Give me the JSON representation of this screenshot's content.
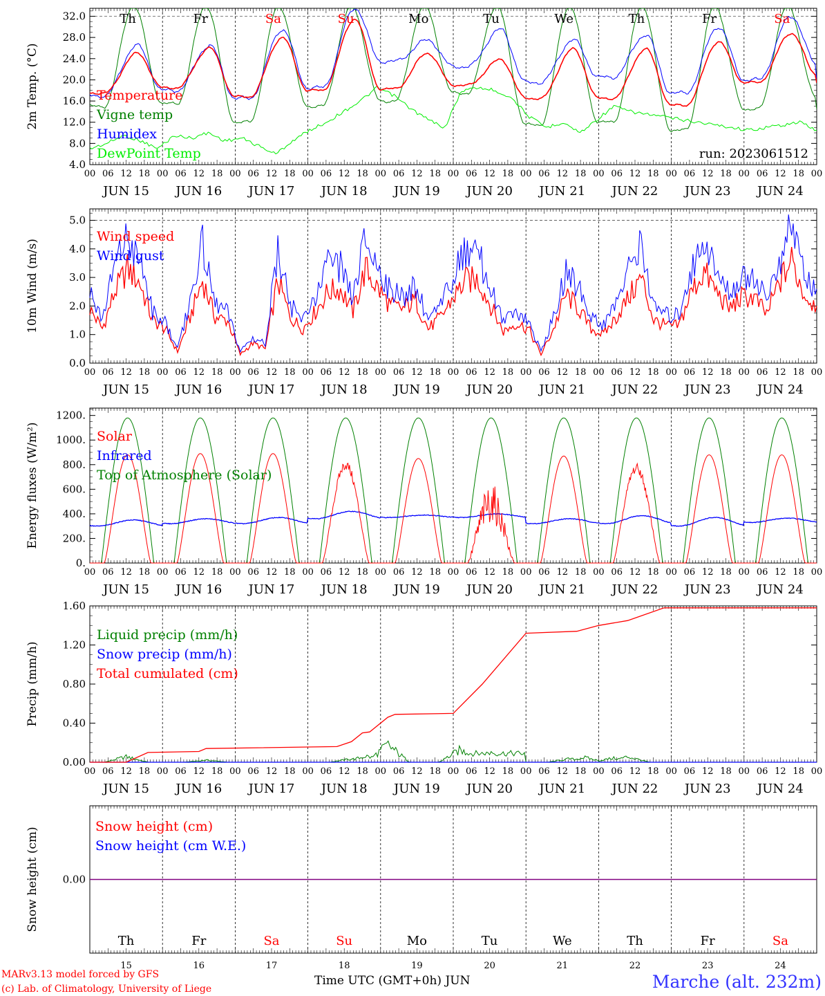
{
  "colors": {
    "temperature": "#ff0000",
    "vigne": "#008000",
    "humidex": "#0000ff",
    "dewpoint": "#00ee00",
    "weekend": "#ff0000",
    "weekday": "#000000",
    "snow_line": "#800080",
    "station": "#3333ff",
    "credit": "#ff0000"
  },
  "days": [
    {
      "abbr": "Th",
      "date": "JUN 15",
      "num": "15",
      "weekend": false
    },
    {
      "abbr": "Fr",
      "date": "JUN 16",
      "num": "16",
      "weekend": false
    },
    {
      "abbr": "Sa",
      "date": "JUN 17",
      "num": "17",
      "weekend": true
    },
    {
      "abbr": "Su",
      "date": "JUN 18",
      "num": "18",
      "weekend": true
    },
    {
      "abbr": "Mo",
      "date": "JUN 19",
      "num": "19",
      "weekend": false
    },
    {
      "abbr": "Tu",
      "date": "JUN 20",
      "num": "20",
      "weekend": false
    },
    {
      "abbr": "We",
      "date": "JUN 21",
      "num": "21",
      "weekend": false
    },
    {
      "abbr": "Th",
      "date": "JUN 22",
      "num": "22",
      "weekend": false
    },
    {
      "abbr": "Fr",
      "date": "JUN 23",
      "num": "23",
      "weekend": false
    },
    {
      "abbr": "Sa",
      "date": "JUN 24",
      "num": "24",
      "weekend": true
    }
  ],
  "hour_ticks": [
    "00",
    "06",
    "12",
    "18"
  ],
  "run_label": "run: 2023061512",
  "footer": {
    "credit1": "MARv3.13 model forced by GFS",
    "credit2": "(c) Lab. of Climatology, University of Liege",
    "xlabel": "Time UTC (GMT+0h) JUN",
    "station": "Marche (alt. 232m)"
  },
  "chart_data": [
    {
      "type": "line",
      "ylabel": "2m Temp. (°C)",
      "ylim": [
        4.0,
        33.5
      ],
      "yticks": [
        "4.0",
        "8.0",
        "12.0",
        "16.0",
        "20.0",
        "24.0",
        "28.0",
        "32.0"
      ],
      "grid_dashed": [
        32.0
      ],
      "series": [
        {
          "name": "Temperature",
          "color": "#ff0000",
          "min": [
            17.5,
            18.5,
            16.8,
            18.0,
            18.3,
            19.0,
            16.5,
            16.5,
            15.2,
            19.5,
            21.0
          ],
          "max": [
            25.0,
            26.0,
            28.0,
            31.5,
            25.0,
            23.8,
            25.8,
            25.8,
            27.2,
            28.8
          ]
        },
        {
          "name": "Vigne temp",
          "color": "#008000",
          "min": [
            15.0,
            15.5,
            12.0,
            15.0,
            16.0,
            17.5,
            11.5,
            12.0,
            10.5,
            14.5,
            16.5
          ],
          "max": [
            34.0,
            34.0,
            34.0,
            34.0,
            34.0,
            34.0,
            34.0,
            34.0,
            34.0,
            34.0
          ]
        },
        {
          "name": "Humidex",
          "color": "#0000ff",
          "min": [
            17.0,
            18.0,
            16.5,
            18.5,
            23.5,
            22.5,
            19.5,
            20.5,
            17.5,
            20.0,
            23.0
          ],
          "max": [
            26.5,
            26.5,
            29.5,
            33.5,
            27.5,
            29.5,
            27.5,
            28.5,
            30.0,
            32.0
          ]
        },
        {
          "name": "DewPoint Temp",
          "color": "#00ee00",
          "values": [
            7.0,
            8.0,
            9.5,
            8.5,
            7.0,
            9.5,
            9.0,
            10.0,
            8.5,
            9.0,
            7.5,
            6.0,
            8.5,
            10.5,
            12.0,
            14.0,
            16.0,
            18.5,
            17.0,
            14.5,
            12.5,
            11.0,
            18.0,
            18.5,
            18.0,
            16.5,
            13.0,
            11.0,
            12.0,
            10.0,
            12.5,
            15.0,
            14.0,
            13.5,
            13.0,
            12.5,
            12.0,
            11.5,
            11.0,
            10.5,
            11.0,
            11.5,
            12.0,
            10.5
          ]
        }
      ]
    },
    {
      "type": "line",
      "ylabel": "10m Wind (m/s)",
      "ylim": [
        0.0,
        5.4
      ],
      "yticks": [
        "0.0",
        "1.0",
        "2.0",
        "3.0",
        "4.0",
        "5.0"
      ],
      "grid_dashed": [
        5.0
      ],
      "series": [
        {
          "name": "Wind speed",
          "color": "#ff0000",
          "values": [
            1.9,
            1.2,
            2.5,
            3.3,
            2.8,
            1.5,
            1.2,
            0.4,
            1.6,
            2.9,
            1.6,
            1.5,
            0.3,
            0.7,
            0.5,
            2.9,
            1.6,
            1.2,
            1.8,
            2.5,
            2.6,
            1.8,
            3.3,
            2.6,
            2.0,
            1.9,
            2.2,
            1.2,
            1.6,
            2.3,
            2.9,
            2.9,
            2.0,
            1.1,
            1.4,
            1.2,
            0.3,
            1.2,
            2.4,
            1.9,
            1.2,
            1.0,
            1.6,
            2.3,
            3.0,
            1.5,
            1.3,
            1.3,
            2.5,
            3.2,
            2.5,
            1.9,
            2.3,
            2.3,
            1.7,
            2.8,
            3.6,
            2.4,
            2.0
          ]
        },
        {
          "name": "Wind gust",
          "color": "#0000ff",
          "values": [
            2.4,
            1.5,
            3.5,
            4.3,
            3.6,
            1.8,
            1.4,
            0.5,
            2.1,
            4.2,
            2.0,
            1.8,
            0.4,
            0.9,
            0.7,
            3.9,
            2.0,
            1.5,
            2.3,
            3.4,
            3.4,
            2.2,
            4.4,
            3.3,
            2.5,
            2.3,
            2.7,
            1.5,
            2.0,
            3.1,
            3.9,
            3.8,
            2.6,
            1.4,
            1.8,
            1.5,
            0.4,
            1.6,
            3.2,
            2.6,
            1.6,
            1.3,
            2.1,
            3.3,
            4.4,
            1.9,
            1.7,
            1.7,
            3.3,
            4.3,
            3.2,
            2.4,
            3.0,
            3.0,
            2.2,
            3.6,
            4.9,
            3.1,
            2.6
          ]
        }
      ]
    },
    {
      "type": "line",
      "ylabel": "Energy fluxes (W/m²)",
      "ylim": [
        0,
        1260
      ],
      "yticks": [
        "0.",
        "200.",
        "400.",
        "600.",
        "800.",
        "1000.",
        "1200."
      ],
      "series": [
        {
          "name": "Solar",
          "color": "#ff0000",
          "daily_peak": [
            880,
            890,
            890,
            840,
            850,
            650,
            870,
            810,
            880,
            880
          ]
        },
        {
          "name": "Infrared",
          "color": "#0000ff",
          "daily_range": [
            [
              300,
              350
            ],
            [
              320,
              360
            ],
            [
              320,
              370
            ],
            [
              360,
              420
            ],
            [
              370,
              390
            ],
            [
              370,
              400
            ],
            [
              320,
              360
            ],
            [
              320,
              385
            ],
            [
              300,
              370
            ],
            [
              330,
              365
            ]
          ]
        },
        {
          "name": "Top of Atmosphere (Solar)",
          "color": "#008000",
          "daily_peak": [
            1180,
            1180,
            1180,
            1180,
            1180,
            1180,
            1180,
            1180,
            1180,
            1180
          ]
        }
      ]
    },
    {
      "type": "line",
      "ylabel": "Precip (mm/h)",
      "ylim": [
        0.0,
        1.6
      ],
      "yticks": [
        "0.00",
        "0.40",
        "0.80",
        "1.20",
        "1.60"
      ],
      "series": [
        {
          "name": "Liquid precip (mm/h)",
          "color": "#008000",
          "events": [
            [
              0.5,
              0.08
            ],
            [
              1.6,
              0.03
            ],
            [
              3.6,
              0.05
            ],
            [
              3.8,
              0.09
            ],
            [
              4.1,
              0.25
            ],
            [
              5.1,
              0.18
            ],
            [
              5.5,
              0.14
            ],
            [
              6.6,
              0.05
            ],
            [
              6.8,
              0.07
            ],
            [
              7.2,
              0.06
            ],
            [
              7.4,
              0.08
            ]
          ]
        },
        {
          "name": "Snow precip (mm/h)",
          "color": "#0000ff",
          "values": [
            0
          ]
        },
        {
          "name": "Total cumulated (cm)",
          "color": "#ff0000",
          "x": [
            0,
            0.5,
            0.8,
            1.5,
            1.6,
            3.4,
            3.6,
            3.75,
            3.85,
            4.1,
            4.2,
            5.0,
            5.4,
            6.0,
            6.7,
            7.0,
            7.4,
            7.9,
            10.0
          ],
          "values": [
            0,
            0,
            0.1,
            0.11,
            0.14,
            0.16,
            0.21,
            0.3,
            0.31,
            0.46,
            0.49,
            0.5,
            0.8,
            1.32,
            1.34,
            1.4,
            1.45,
            1.58,
            1.58
          ]
        }
      ]
    },
    {
      "type": "line",
      "ylabel": "Snow height (cm)",
      "ylim": [
        -1,
        1
      ],
      "yticks": [
        "0.00"
      ],
      "series": [
        {
          "name": "Snow height (cm)",
          "color": "#ff0000",
          "values": [
            0
          ]
        },
        {
          "name": "Snow height (cm W.E.)",
          "color": "#0000ff",
          "values": [
            0
          ]
        }
      ]
    }
  ]
}
